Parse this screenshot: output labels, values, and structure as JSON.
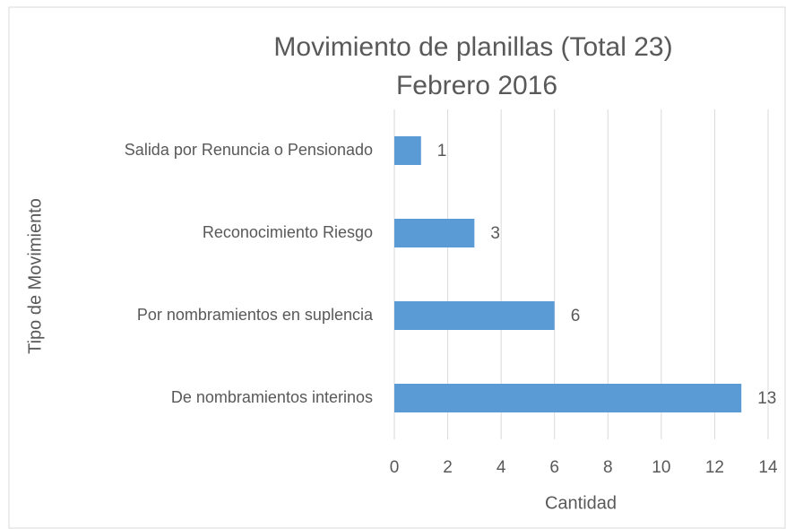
{
  "chart_data": {
    "type": "bar",
    "orientation": "horizontal",
    "title": [
      "Movimiento de planillas (Total 23)",
      "Febrero 2016"
    ],
    "x_label": "Cantidad",
    "y_label": "Tipo de Movimiento",
    "categories": [
      "Salida por Renuncia o Pensionado",
      "Reconocimiento Riesgo",
      "Por nombramientos en suplencia",
      "De nombramientos interinos"
    ],
    "values": [
      1,
      3,
      6,
      13
    ],
    "color": "#5b9bd5",
    "xlim": [
      0,
      14
    ],
    "xticks": [
      0,
      2,
      4,
      6,
      8,
      10,
      12,
      14
    ],
    "grid": true
  }
}
